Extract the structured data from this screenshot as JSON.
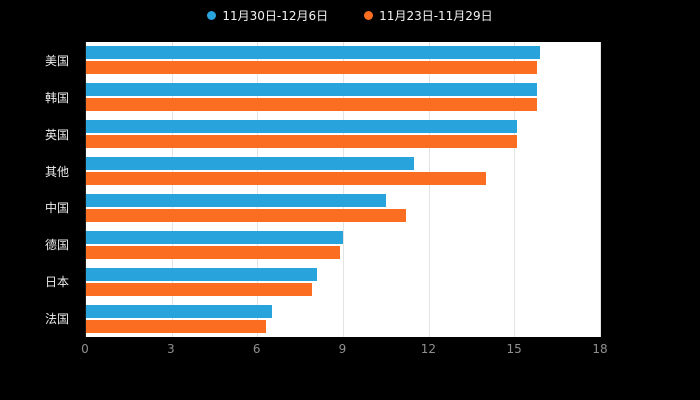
{
  "legend": {
    "items": [
      {
        "label": "11月30日-12月6日",
        "color": "#29A3DC"
      },
      {
        "label": "11月23日-11月29日",
        "color": "#FB6D20"
      }
    ]
  },
  "chart_data": {
    "type": "bar",
    "orientation": "horizontal",
    "title": "",
    "xlabel": "",
    "ylabel": "",
    "categories": [
      "美国",
      "韩国",
      "英国",
      "其他",
      "中国",
      "德国",
      "日本",
      "法国"
    ],
    "series": [
      {
        "name": "11月30日-12月6日",
        "color": "#29A3DC",
        "values": [
          15.9,
          15.8,
          15.1,
          11.5,
          10.5,
          9.0,
          8.1,
          6.5
        ]
      },
      {
        "name": "11月23日-11月29日",
        "color": "#FB6D20",
        "values": [
          15.8,
          15.8,
          15.1,
          14.0,
          11.2,
          8.9,
          7.9,
          6.3
        ]
      }
    ],
    "xlim": [
      0,
      18
    ],
    "x_ticks": [
      0,
      3,
      6,
      9,
      12,
      15,
      18
    ],
    "grid": true,
    "legend_position": "top"
  },
  "colors": {
    "background": "#000000",
    "plot_background": "#ffffff",
    "gridline": "#e3e3e3",
    "axis_line": "#1a1a1a",
    "tick_label": "#8f8f8f",
    "category_label": "#ececec",
    "legend_text": "#f2f2f2"
  }
}
